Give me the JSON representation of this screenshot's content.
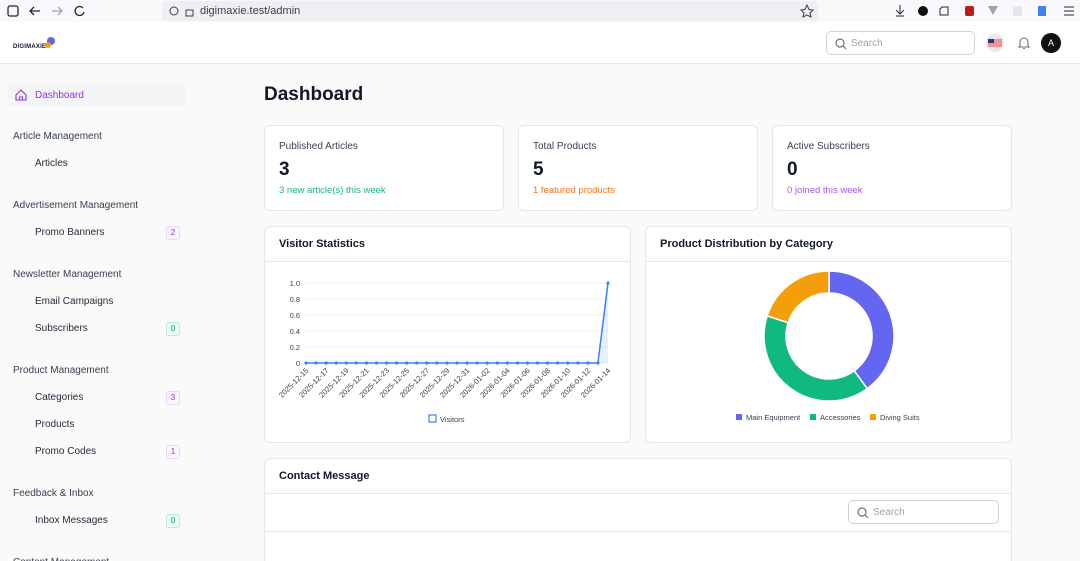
{
  "browser": {
    "url": "digimaxie.test/admin"
  },
  "header": {
    "logo": "DIGIMAXIE",
    "search_placeholder": "Search",
    "avatar": "A"
  },
  "sidebar": {
    "active": "Dashboard",
    "sections": [
      {
        "title": "Article Management",
        "items": [
          {
            "label": "Articles"
          }
        ]
      },
      {
        "title": "Advertisement Management",
        "items": [
          {
            "label": "Promo Banners",
            "badge": 2
          }
        ]
      },
      {
        "title": "Newsletter Management",
        "items": [
          {
            "label": "Email Campaigns"
          },
          {
            "label": "Subscribers",
            "badge": 0
          }
        ]
      },
      {
        "title": "Product Management",
        "items": [
          {
            "label": "Categories",
            "badge": 3
          },
          {
            "label": "Products"
          },
          {
            "label": "Promo Codes",
            "badge": 1
          }
        ]
      },
      {
        "title": "Feedback & Inbox",
        "items": [
          {
            "label": "Inbox Messages",
            "badge": 0
          }
        ]
      },
      {
        "title": "Content Management",
        "items": []
      }
    ]
  },
  "page_title": "Dashboard",
  "stats": [
    {
      "label": "Published Articles",
      "value": 3,
      "note": "3 new article(s) this week",
      "color": "#10b981"
    },
    {
      "label": "Total Products",
      "value": 5,
      "note": "1 featured products",
      "color": "#f97316"
    },
    {
      "label": "Active Subscribers",
      "value": 0,
      "note": "0 joined this week",
      "color": "#a855f7"
    }
  ],
  "chart_data": [
    {
      "type": "line",
      "title": "Visitor Statistics",
      "categories": [
        "2025-12-15",
        null,
        "2025-12-17",
        null,
        "2025-12-19",
        null,
        "2025-12-21",
        null,
        "2025-12-23",
        null,
        "2025-12-25",
        null,
        "2025-12-27",
        null,
        "2025-12-29",
        null,
        "2025-12-31",
        null,
        "2026-01-02",
        null,
        "2026-01-04",
        null,
        "2026-01-06",
        null,
        "2026-01-08",
        null,
        "2026-01-10",
        null,
        "2026-01-12",
        null,
        "2026-01-14"
      ],
      "series": [
        {
          "name": "Visitors",
          "color": "#3b82f6",
          "values": [
            0,
            0,
            0,
            0,
            0,
            0,
            0,
            0,
            0,
            0,
            0,
            0,
            0,
            0,
            0,
            0,
            0,
            0,
            0,
            0,
            0,
            0,
            0,
            0,
            0,
            0,
            0,
            0,
            0,
            0,
            1
          ]
        }
      ],
      "ylim": [
        0,
        1
      ],
      "yticks": [
        0,
        0.2,
        0.4,
        0.6,
        0.8,
        {
          "value": 1,
          "label": "1.0"
        }
      ],
      "grid": true,
      "legend": "bottom"
    },
    {
      "type": "donut",
      "title": "Product Distribution by Category",
      "categories": [
        "Main Equipment",
        "Accessories",
        "Diving Suits"
      ],
      "values": [
        2,
        2,
        1
      ],
      "colors": [
        "#6366f1",
        "#10b981",
        "#f59e0b"
      ],
      "legend": "bottom"
    }
  ],
  "contact": {
    "title": "Contact Message",
    "search_placeholder": "Search"
  }
}
